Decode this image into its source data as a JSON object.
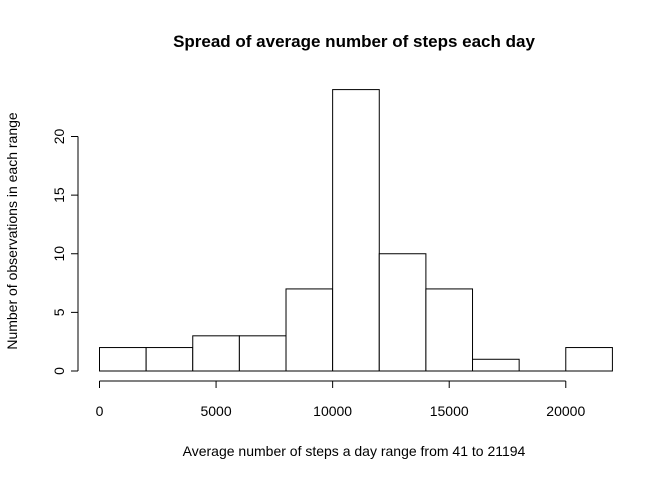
{
  "chart_data": {
    "type": "bar",
    "title": "Spread of average number of steps each day",
    "xlabel": "Average number of steps a day range from 41 to 21194",
    "ylabel": "Number of observations in each range",
    "bins": [
      {
        "x0": 0,
        "x1": 2000,
        "count": 2
      },
      {
        "x0": 2000,
        "x1": 4000,
        "count": 2
      },
      {
        "x0": 4000,
        "x1": 6000,
        "count": 3
      },
      {
        "x0": 6000,
        "x1": 8000,
        "count": 3
      },
      {
        "x0": 8000,
        "x1": 10000,
        "count": 7
      },
      {
        "x0": 10000,
        "x1": 12000,
        "count": 24
      },
      {
        "x0": 12000,
        "x1": 14000,
        "count": 10
      },
      {
        "x0": 14000,
        "x1": 16000,
        "count": 7
      },
      {
        "x0": 16000,
        "x1": 18000,
        "count": 1
      },
      {
        "x0": 18000,
        "x1": 20000,
        "count": 0
      },
      {
        "x0": 20000,
        "x1": 22000,
        "count": 2
      }
    ],
    "xticks": [
      0,
      5000,
      10000,
      15000,
      20000
    ],
    "yticks": [
      0,
      5,
      10,
      15,
      20
    ],
    "xlim": [
      0,
      22000
    ],
    "ylim": [
      0,
      24
    ],
    "grid": false,
    "legend": "none",
    "colors": {
      "bar_fill": "#ffffff",
      "bar_stroke": "#000000"
    }
  }
}
